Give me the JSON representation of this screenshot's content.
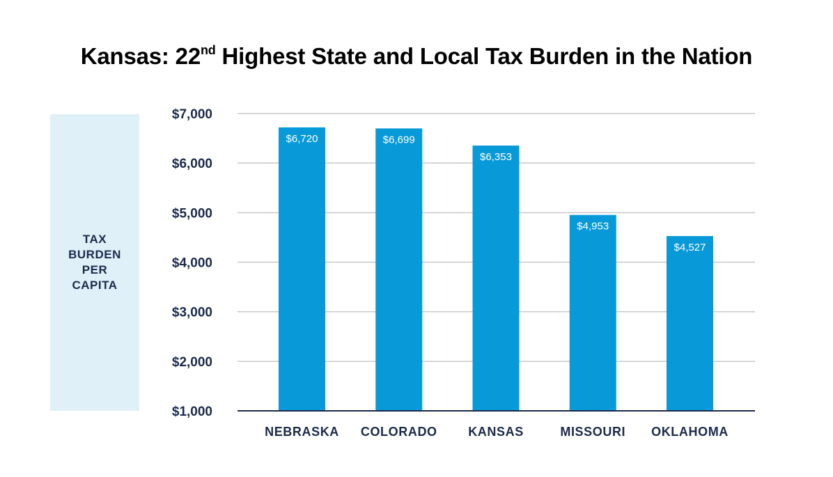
{
  "title": {
    "main": "Kansas: 22",
    "superscript": "nd",
    "rest": " Highest State and Local Tax Burden in the Nation"
  },
  "y_axis_box": {
    "lines": [
      "TAX",
      "BURDEN",
      "PER",
      "CAPITA"
    ]
  },
  "colors": {
    "bar": "#0899d8",
    "gridline": "#c8c8c8",
    "axis": "#1b2a4a",
    "label_box": "#dff0f9",
    "text": "#1b2a4a"
  },
  "chart_data": {
    "type": "bar",
    "title": "Kansas: 22nd Highest State and Local Tax Burden in the Nation",
    "xlabel": "",
    "ylabel": "TAX BURDEN PER CAPITA",
    "categories": [
      "NEBRASKA",
      "COLORADO",
      "KANSAS",
      "MISSOURI",
      "OKLAHOMA"
    ],
    "values": [
      6720,
      6699,
      6353,
      4953,
      4527
    ],
    "data_labels": [
      "$6,720",
      "$6,699",
      "$6,353",
      "$4,953",
      "$4,527"
    ],
    "ylim": [
      1000,
      7000
    ],
    "yticks": [
      1000,
      2000,
      3000,
      4000,
      5000,
      6000,
      7000
    ],
    "ytick_labels": [
      "$1,000",
      "$2,000",
      "$3,000",
      "$4,000",
      "$5,000",
      "$6,000",
      "$7,000"
    ],
    "grid": true,
    "legend": "none"
  }
}
